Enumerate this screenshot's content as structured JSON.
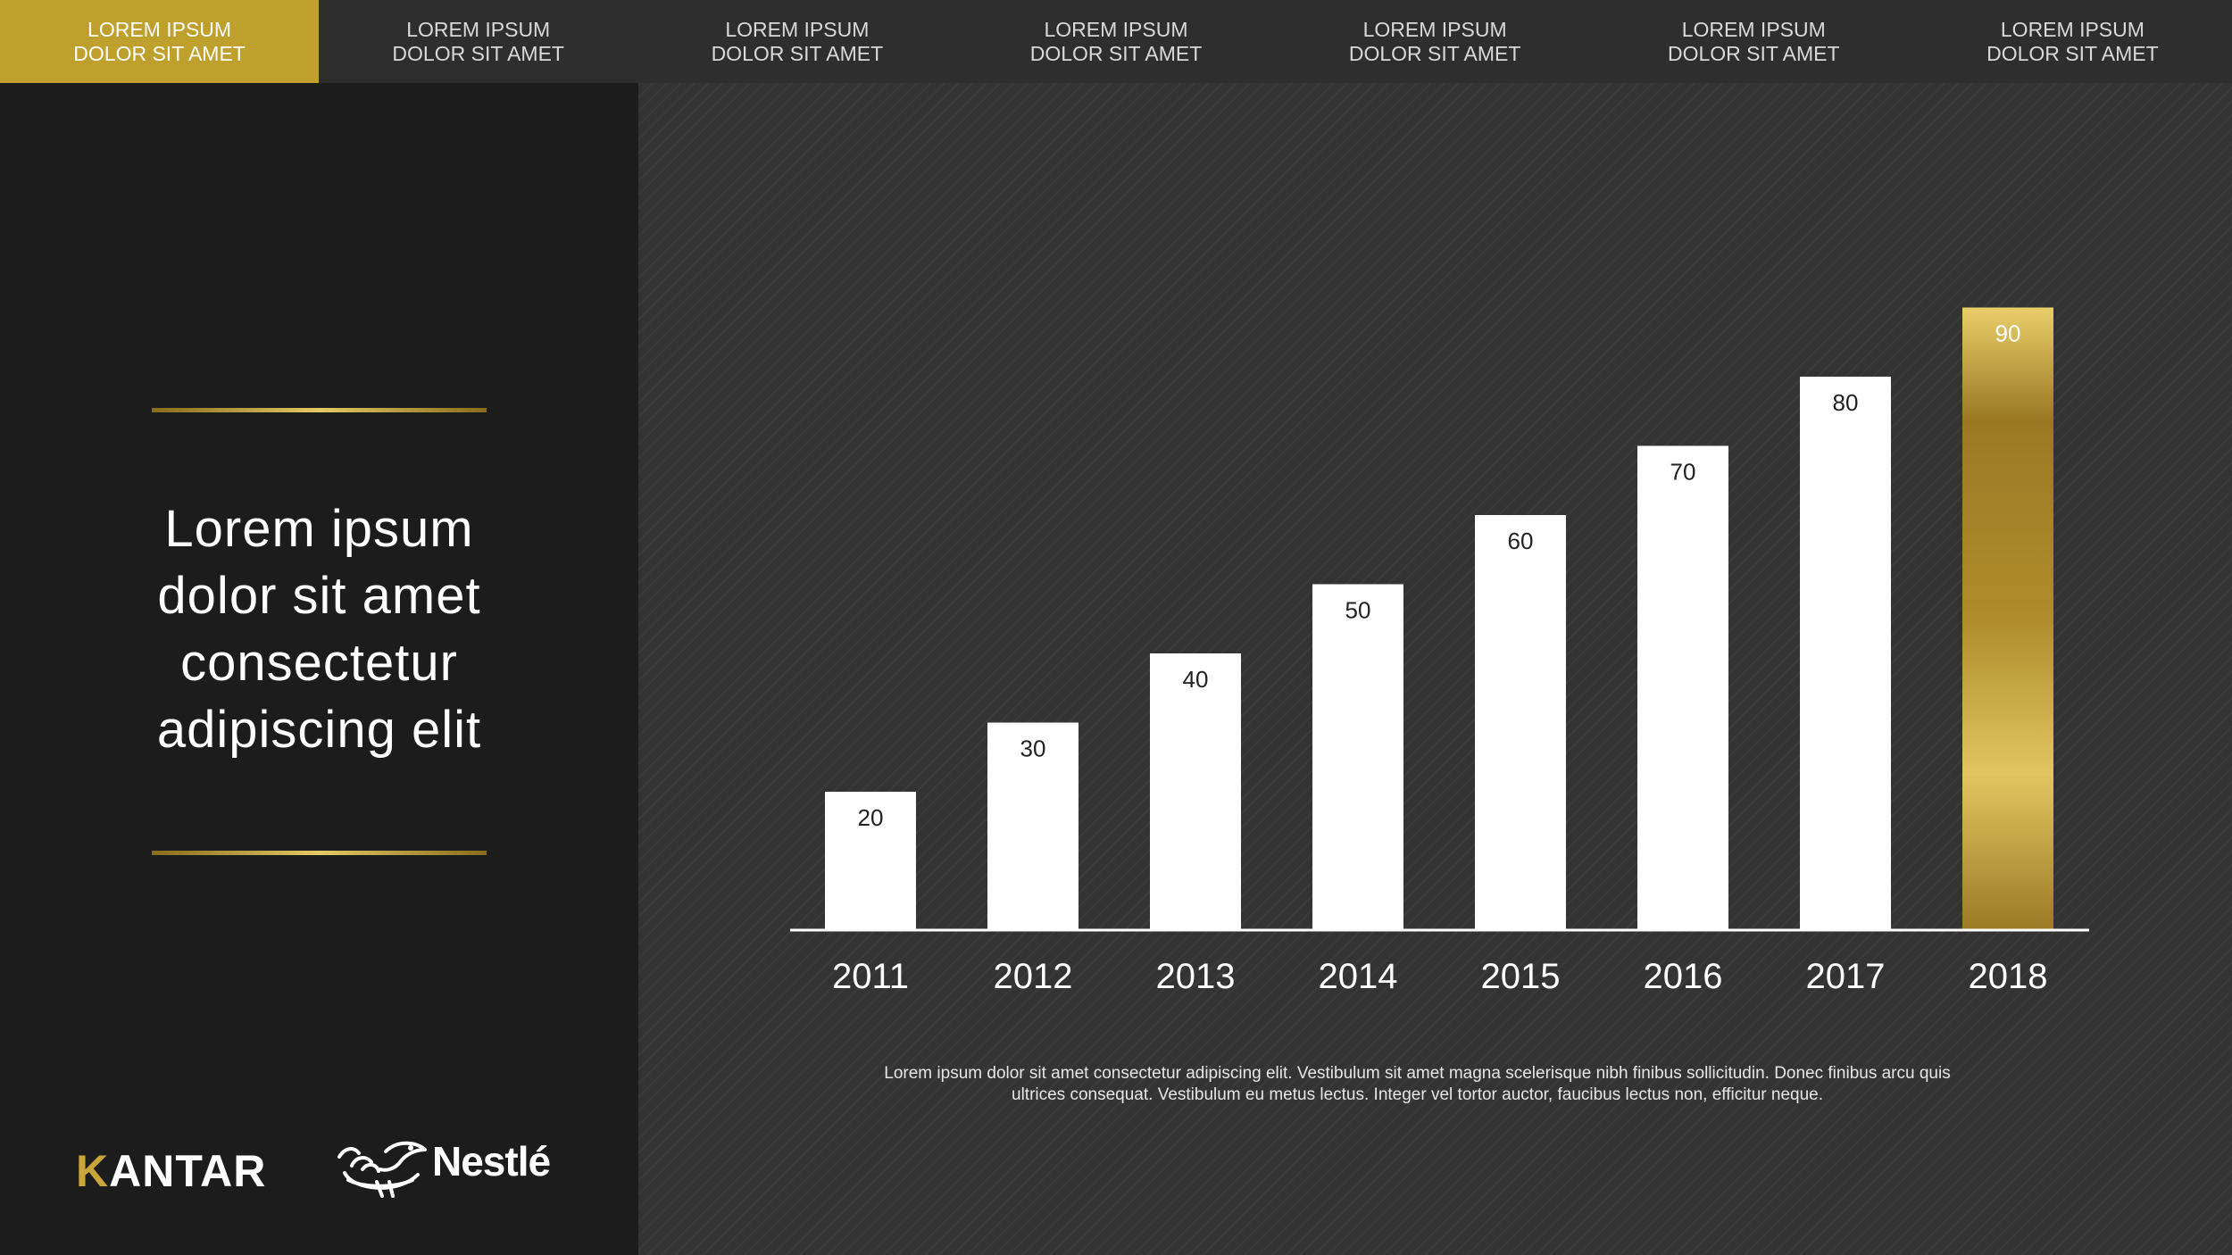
{
  "nav": {
    "tabs": [
      {
        "line1": "LOREM IPSUM",
        "line2": "DOLOR SIT AMET",
        "active": true
      },
      {
        "line1": "LOREM IPSUM",
        "line2": "DOLOR SIT AMET",
        "active": false
      },
      {
        "line1": "LOREM IPSUM",
        "line2": "DOLOR SIT AMET",
        "active": false
      },
      {
        "line1": "LOREM IPSUM",
        "line2": "DOLOR SIT AMET",
        "active": false
      },
      {
        "line1": "LOREM IPSUM",
        "line2": "DOLOR SIT AMET",
        "active": false
      },
      {
        "line1": "LOREM IPSUM",
        "line2": "DOLOR SIT AMET",
        "active": false
      },
      {
        "line1": "LOREM IPSUM",
        "line2": "DOLOR SIT AMET",
        "active": false
      }
    ]
  },
  "headline": {
    "lines": [
      "Lorem ipsum",
      "dolor sit amet",
      "consectetur",
      "adipiscing elit"
    ]
  },
  "logos": {
    "kantar": {
      "first": "K",
      "rest": "ANTAR"
    },
    "nestle": {
      "text": "Nestlé"
    }
  },
  "caption": {
    "lines": [
      "Lorem ipsum dolor sit amet consectetur adipiscing elit. Vestibulum sit amet magna scelerisque nibh finibus sollicitudin. Donec finibus arcu quis",
      "ultrices consequat. Vestibulum eu metus lectus. Integer vel tortor auctor, faucibus lectus non, efficitur neque."
    ]
  },
  "colors": {
    "accent_gold": "#c0a02c",
    "bar_white": "#ffffff",
    "bar_gold_light": "#e6c862",
    "bar_gold_dark": "#9c7824"
  },
  "chart_data": {
    "type": "bar",
    "categories": [
      "2011",
      "2012",
      "2013",
      "2014",
      "2015",
      "2016",
      "2017",
      "2018"
    ],
    "values": [
      20,
      30,
      40,
      50,
      60,
      70,
      80,
      90
    ],
    "highlight_index": 7,
    "ylim": [
      0,
      100
    ],
    "grid": false,
    "legend": "none",
    "data_labels": true
  }
}
